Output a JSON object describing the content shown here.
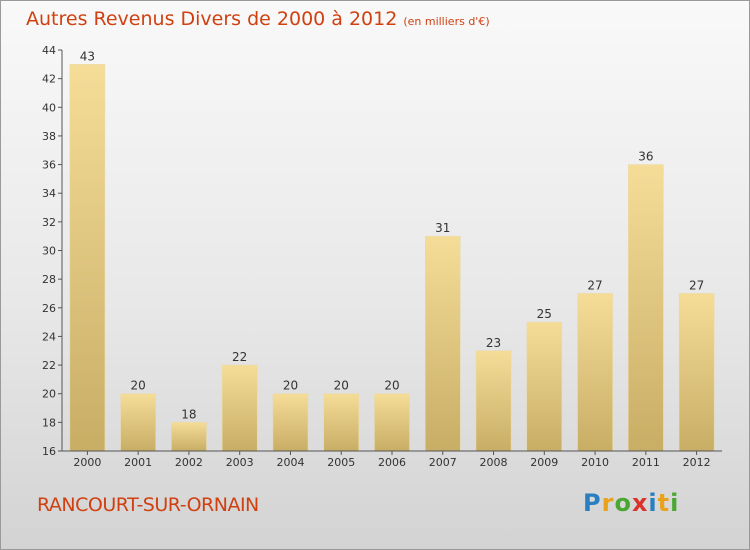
{
  "title": "Autres Revenus Divers de 2000 à 2012",
  "title_unit": "(en milliers d'€)",
  "location": "RANCOURT-SUR-ORNAIN",
  "logo_text": "Proxiti",
  "logo_colors": [
    "#2a7fc1",
    "#e9a21b",
    "#4aa832",
    "#d9342b",
    "#2a7fc1",
    "#e9a21b",
    "#4aa832"
  ],
  "colors": {
    "title": "#d04010",
    "bar_light": "#f5dd98",
    "bar_dark": "#c8ad65"
  },
  "chart_data": {
    "type": "bar",
    "title": "Autres Revenus Divers de 2000 à 2012",
    "subtitle": "(en milliers d'€)",
    "categories": [
      "2000",
      "2001",
      "2002",
      "2003",
      "2004",
      "2005",
      "2006",
      "2007",
      "2008",
      "2009",
      "2010",
      "2011",
      "2012"
    ],
    "values": [
      43,
      20,
      18,
      22,
      20,
      20,
      20,
      31,
      23,
      25,
      27,
      36,
      27
    ],
    "yticks": [
      16,
      18,
      20,
      22,
      24,
      26,
      28,
      30,
      32,
      34,
      36,
      38,
      40,
      42,
      44
    ],
    "ylim": [
      16,
      44
    ],
    "grid": false,
    "legend": "none"
  }
}
